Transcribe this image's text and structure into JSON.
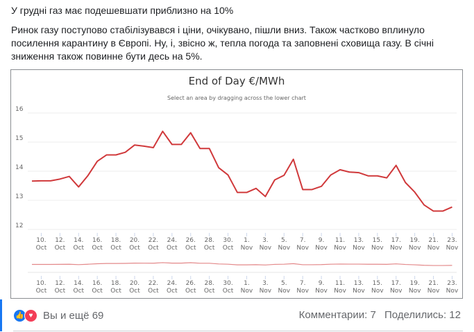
{
  "post": {
    "title": "У грудні газ має подешевшати приблизно на 10%",
    "body": "Ринок газу поступово стабілізувався і ціни, очікувано, пішли вниз. Також частково вплинуло посилення карантину в Європі. Ну, і, звісно ж, тепла погода та заповнені сховища газу. В січні зниження також повинне бути десь на 5%."
  },
  "chart_data": {
    "type": "line",
    "title": "End of Day €/MWh",
    "subtitle": "Select an area by dragging across the lower chart",
    "xlabel": "",
    "ylabel": "",
    "ylim": [
      12,
      16
    ],
    "yticks": [
      "12",
      "13",
      "14",
      "15",
      "16"
    ],
    "x_start": "9 Oct",
    "xtick_labels": [
      [
        "10.",
        "Oct"
      ],
      [
        "12.",
        "Oct"
      ],
      [
        "14.",
        "Oct"
      ],
      [
        "16.",
        "Oct"
      ],
      [
        "18.",
        "Oct"
      ],
      [
        "20.",
        "Oct"
      ],
      [
        "22.",
        "Oct"
      ],
      [
        "24.",
        "Oct"
      ],
      [
        "26.",
        "Oct"
      ],
      [
        "28.",
        "Oct"
      ],
      [
        "30.",
        "Oct"
      ],
      [
        "1.",
        "Nov"
      ],
      [
        "3.",
        "Nov"
      ],
      [
        "5.",
        "Nov"
      ],
      [
        "7.",
        "Nov"
      ],
      [
        "9.",
        "Nov"
      ],
      [
        "11.",
        "Nov"
      ],
      [
        "13.",
        "Nov"
      ],
      [
        "15.",
        "Nov"
      ],
      [
        "17.",
        "Nov"
      ],
      [
        "19.",
        "Nov"
      ],
      [
        "21.",
        "Nov"
      ],
      [
        "23.",
        "Nov"
      ]
    ],
    "series": [
      {
        "name": "End of Day",
        "color": "#d0393b",
        "values": [
          13.66,
          13.67,
          13.67,
          13.73,
          13.82,
          13.46,
          13.85,
          14.34,
          14.56,
          14.56,
          14.65,
          14.9,
          14.86,
          14.81,
          15.37,
          14.92,
          14.92,
          15.32,
          14.78,
          14.78,
          14.12,
          13.87,
          13.27,
          13.27,
          13.41,
          13.13,
          13.7,
          13.86,
          14.41,
          13.37,
          13.37,
          13.48,
          13.87,
          14.05,
          13.97,
          13.95,
          13.84,
          13.84,
          13.77,
          14.2,
          13.61,
          13.28,
          12.84,
          12.63,
          12.63,
          12.77
        ]
      }
    ],
    "grid": true,
    "legend": "none"
  },
  "footer": {
    "reactions_text": "Вы и ещё 69",
    "comments": "Комментарии: 7",
    "shares": "Поделились: 12"
  }
}
